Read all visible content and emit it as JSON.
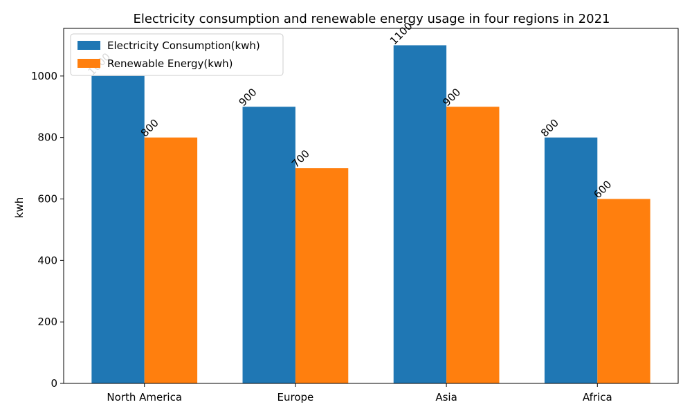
{
  "chart_data": {
    "type": "bar",
    "title": "Electricity consumption and renewable energy usage in four regions in 2021",
    "xlabel": "",
    "ylabel": "kwh",
    "categories": [
      "North America",
      "Europe",
      "Asia",
      "Africa"
    ],
    "series": [
      {
        "name": "Electricity Consumption(kwh)",
        "values": [
          1000,
          900,
          1100,
          800
        ],
        "color": "#1f77b4"
      },
      {
        "name": "Renewable Energy(kwh)",
        "values": [
          800,
          700,
          900,
          600
        ],
        "color": "#ff7f0e"
      }
    ],
    "ylim": [
      0,
      1155
    ],
    "yticks": [
      0,
      200,
      400,
      600,
      800,
      1000
    ],
    "grid": false,
    "legend_position": "top-left",
    "data_labels": true,
    "data_label_rotation": 45
  }
}
